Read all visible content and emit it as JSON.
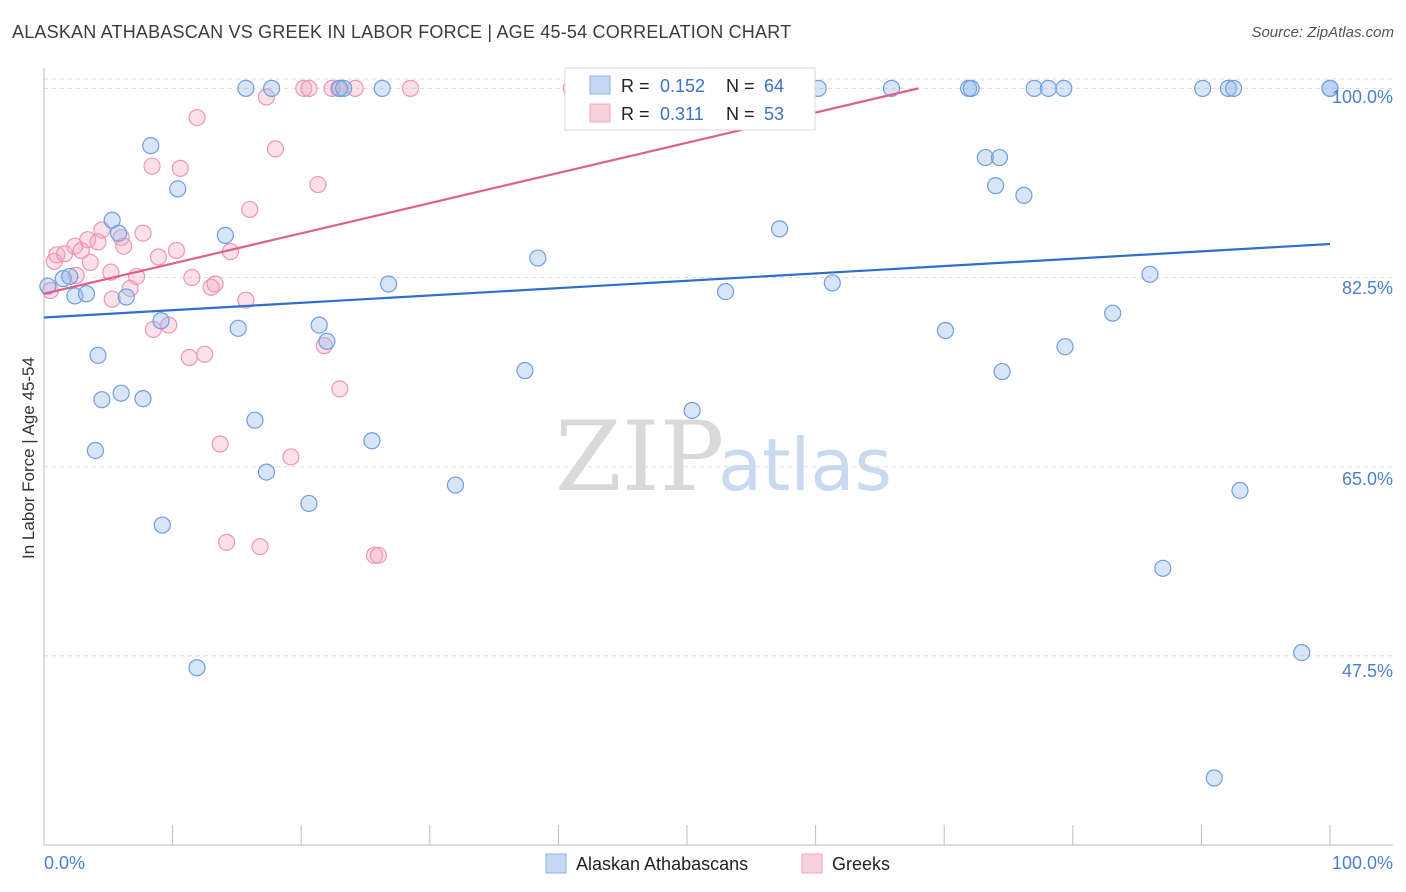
{
  "header": {
    "title": "ALASKAN ATHABASCAN VS GREEK IN LABOR FORCE | AGE 45-54 CORRELATION CHART",
    "source": "Source: ZipAtlas.com"
  },
  "watermark": {
    "zip": "ZIP",
    "atlas": "atlas"
  },
  "colors": {
    "blue": "#8fb4e8",
    "blue_line": "#2f6fcc",
    "pink": "#f3a7c0",
    "pink_line": "#e0608a",
    "axis_text": "#4a7fd0",
    "grid": "#dcdcdc"
  },
  "stats": {
    "blue": {
      "r_label": "R =",
      "r_value": "0.152",
      "n_label": "N =",
      "n_value": "64"
    },
    "pink": {
      "r_label": "R =",
      "r_value": "0.311",
      "n_label": "N =",
      "n_value": "53"
    }
  },
  "chart_data": {
    "type": "scatter",
    "title": "ALASKAN ATHABASCAN VS GREEK IN LABOR FORCE | AGE 45-54 CORRELATION CHART",
    "xlabel": "",
    "ylabel": "In Labor Force | Age 45-54",
    "xlim": [
      0,
      100
    ],
    "ylim": [
      30,
      101.7
    ],
    "x_tick_labels": {
      "left": "0.0%",
      "right": "100.0%"
    },
    "y_ticks": [
      {
        "value": 100.0,
        "label": "100.0%"
      },
      {
        "value": 82.5,
        "label": "82.5%"
      },
      {
        "value": 65.0,
        "label": "65.0%"
      },
      {
        "value": 47.5,
        "label": "47.5%"
      }
    ],
    "legend": [
      "Alaskan Athabascans",
      "Greeks"
    ],
    "series": [
      {
        "name": "Alaskan Athabascans",
        "color": "#8fb4e8",
        "trend": {
          "x": [
            0,
            100
          ],
          "y": [
            78.8,
            85.6
          ]
        },
        "points": [
          [
            0.3,
            81.7
          ],
          [
            1.5,
            82.4
          ],
          [
            2.0,
            82.6
          ],
          [
            2.4,
            80.8
          ],
          [
            3.3,
            81.0
          ],
          [
            4.2,
            75.3
          ],
          [
            4.5,
            71.2
          ],
          [
            4.0,
            66.5
          ],
          [
            5.3,
            87.8
          ],
          [
            5.8,
            86.6
          ],
          [
            6.4,
            80.7
          ],
          [
            6.0,
            71.8
          ],
          [
            7.7,
            71.3
          ],
          [
            8.3,
            94.7
          ],
          [
            9.1,
            78.5
          ],
          [
            9.2,
            59.6
          ],
          [
            10.4,
            90.7
          ],
          [
            11.9,
            46.4
          ],
          [
            14.1,
            86.4
          ],
          [
            15.1,
            77.8
          ],
          [
            15.7,
            100
          ],
          [
            16.4,
            69.3
          ],
          [
            17.3,
            64.5
          ],
          [
            17.7,
            100
          ],
          [
            20.6,
            61.6
          ],
          [
            21.4,
            78.1
          ],
          [
            22.0,
            76.6
          ],
          [
            23.0,
            100
          ],
          [
            23.3,
            100
          ],
          [
            25.5,
            67.4
          ],
          [
            26.3,
            100
          ],
          [
            26.8,
            81.9
          ],
          [
            32.0,
            63.3
          ],
          [
            37.4,
            73.9
          ],
          [
            38.4,
            84.3
          ],
          [
            50.4,
            70.2
          ],
          [
            53.0,
            81.2
          ],
          [
            57.2,
            87.0
          ],
          [
            60.2,
            100
          ],
          [
            61.3,
            82.0
          ],
          [
            65.9,
            100
          ],
          [
            70.1,
            77.6
          ],
          [
            71.9,
            100
          ],
          [
            72.1,
            100
          ],
          [
            73.2,
            93.6
          ],
          [
            74.0,
            91.0
          ],
          [
            74.3,
            93.6
          ],
          [
            74.5,
            73.8
          ],
          [
            76.2,
            90.1
          ],
          [
            77.0,
            100
          ],
          [
            78.1,
            100
          ],
          [
            79.3,
            100
          ],
          [
            79.4,
            76.1
          ],
          [
            83.1,
            79.2
          ],
          [
            86.0,
            82.8
          ],
          [
            87.0,
            55.6
          ],
          [
            90.1,
            100
          ],
          [
            91.0,
            36.2
          ],
          [
            92.1,
            100
          ],
          [
            92.5,
            100
          ],
          [
            93.0,
            62.8
          ],
          [
            97.8,
            47.8
          ],
          [
            100,
            100
          ],
          [
            100,
            100
          ]
        ]
      },
      {
        "name": "Greeks",
        "color": "#f3a7c0",
        "trend": {
          "x": [
            0,
            68
          ],
          "y": [
            81.0,
            100.0
          ]
        },
        "trend_dashed": {
          "x": [
            68,
            68.2
          ],
          "y": [
            100.0,
            100.0
          ]
        },
        "points": [
          [
            0.5,
            81.3
          ],
          [
            0.8,
            84.0
          ],
          [
            1.0,
            84.6
          ],
          [
            1.6,
            84.7
          ],
          [
            2.4,
            85.4
          ],
          [
            2.5,
            82.7
          ],
          [
            2.9,
            85.0
          ],
          [
            3.4,
            86.0
          ],
          [
            3.6,
            83.9
          ],
          [
            4.2,
            85.8
          ],
          [
            4.5,
            86.9
          ],
          [
            5.2,
            83.0
          ],
          [
            5.3,
            80.5
          ],
          [
            6.0,
            86.2
          ],
          [
            6.2,
            85.4
          ],
          [
            6.7,
            81.5
          ],
          [
            7.2,
            82.6
          ],
          [
            7.7,
            86.6
          ],
          [
            8.4,
            92.8
          ],
          [
            8.5,
            77.7
          ],
          [
            8.9,
            84.4
          ],
          [
            9.7,
            78.1
          ],
          [
            10.3,
            85.0
          ],
          [
            10.6,
            92.6
          ],
          [
            11.3,
            75.1
          ],
          [
            11.5,
            82.5
          ],
          [
            11.9,
            97.3
          ],
          [
            12.5,
            75.4
          ],
          [
            13.0,
            81.6
          ],
          [
            13.3,
            81.9
          ],
          [
            13.7,
            67.1
          ],
          [
            14.2,
            58.0
          ],
          [
            14.5,
            84.9
          ],
          [
            15.7,
            80.4
          ],
          [
            16.0,
            88.8
          ],
          [
            16.8,
            57.6
          ],
          [
            17.3,
            99.2
          ],
          [
            18.0,
            94.4
          ],
          [
            19.2,
            65.9
          ],
          [
            20.2,
            100
          ],
          [
            20.6,
            100
          ],
          [
            21.3,
            91.1
          ],
          [
            21.8,
            76.2
          ],
          [
            22.4,
            100
          ],
          [
            22.9,
            100
          ],
          [
            23.0,
            72.2
          ],
          [
            24.2,
            100
          ],
          [
            25.7,
            56.8
          ],
          [
            26.0,
            56.8
          ],
          [
            28.5,
            100
          ],
          [
            41.0,
            100
          ],
          [
            56.5,
            100
          ],
          [
            57.0,
            100
          ]
        ]
      }
    ]
  }
}
